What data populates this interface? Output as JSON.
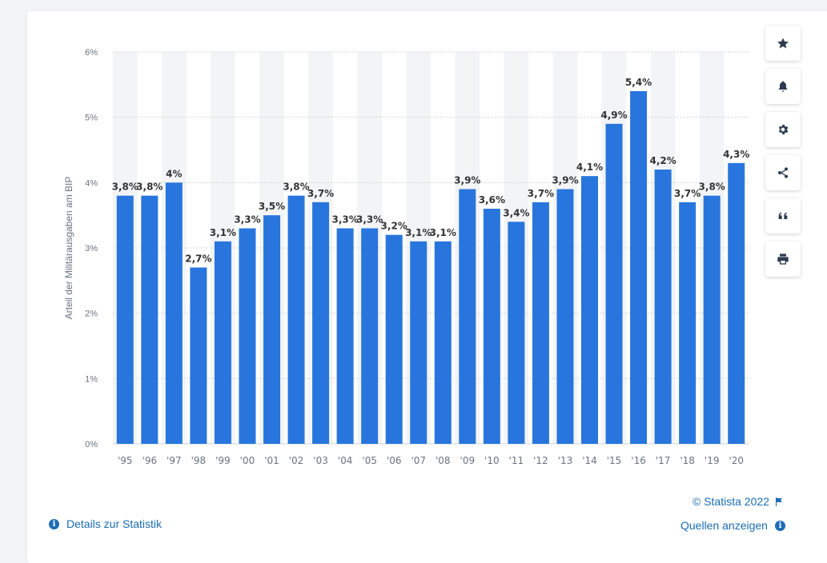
{
  "chart_data": {
    "type": "bar",
    "categories": [
      "'95",
      "'96",
      "'97",
      "'98",
      "'99",
      "'00",
      "'01",
      "'02",
      "'03",
      "'04",
      "'05",
      "'06",
      "'07",
      "'08",
      "'09",
      "'10",
      "'11",
      "'12",
      "'13",
      "'14",
      "'15",
      "'16",
      "'17",
      "'18",
      "'19",
      "'20"
    ],
    "values": [
      3.8,
      3.8,
      4,
      2.7,
      3.1,
      3.3,
      3.5,
      3.8,
      3.7,
      3.3,
      3.3,
      3.2,
      3.1,
      3.1,
      3.9,
      3.6,
      3.4,
      3.7,
      3.9,
      4.1,
      4.9,
      5.4,
      4.2,
      3.7,
      3.8,
      4.3
    ],
    "value_labels": [
      "3,8%",
      "3,8%",
      "4%",
      "2,7%",
      "3,1%",
      "3,3%",
      "3,5%",
      "3,8%",
      "3,7%",
      "3,3%",
      "3,3%",
      "3,2%",
      "3,1%",
      "3,1%",
      "3,9%",
      "3,6%",
      "3,4%",
      "3,7%",
      "3,9%",
      "4,1%",
      "4,9%",
      "5,4%",
      "4,2%",
      "3,7%",
      "3,8%",
      "4,3%"
    ],
    "ylabel": "Arteil der Militärausgaben am BIP",
    "yticks": [
      0,
      1,
      2,
      3,
      4,
      5,
      6
    ],
    "ytick_labels": [
      "0%",
      "1%",
      "2%",
      "3%",
      "4%",
      "5%",
      "6%"
    ],
    "ylim": [
      0,
      6
    ],
    "grid": true,
    "bar_color": "#2876dd"
  },
  "toolbar": {
    "buttons": [
      {
        "name": "favorite-button",
        "icon": "star-icon"
      },
      {
        "name": "notification-button",
        "icon": "bell-icon"
      },
      {
        "name": "settings-button",
        "icon": "gear-icon"
      },
      {
        "name": "share-button",
        "icon": "share-icon"
      },
      {
        "name": "cite-button",
        "icon": "quote-icon"
      },
      {
        "name": "print-button",
        "icon": "printer-icon"
      }
    ]
  },
  "footer": {
    "copyright": "© Statista 2022",
    "details_link": "Details zur Statistik",
    "sources_link": "Quellen anzeigen",
    "info_glyph": "i"
  },
  "colors": {
    "accent": "#1a6db5",
    "stripe": "#f3f4f6",
    "gridline": "#cfd3d8",
    "axis_text": "#6b7280",
    "label_text": "#333333"
  }
}
